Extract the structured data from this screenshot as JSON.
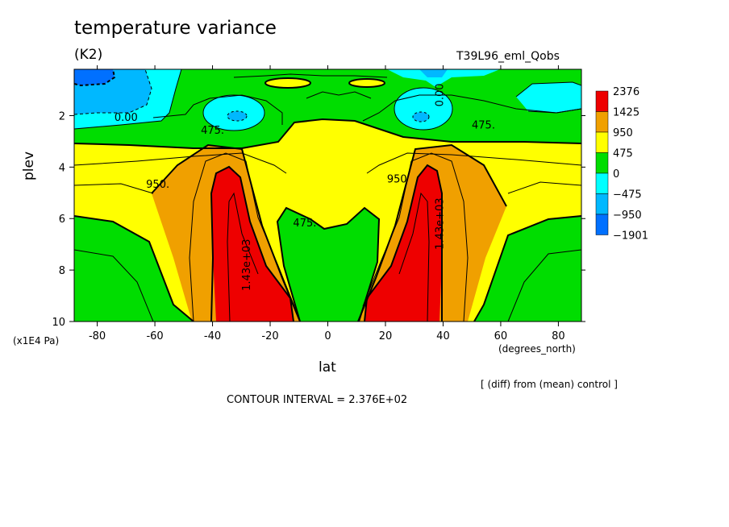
{
  "header": {
    "title": "temperature variance",
    "units": "(K2)",
    "run_name": "T39L96_eml_Qobs"
  },
  "footer": {
    "y_unit": "(x1E4 Pa)",
    "x_unit": "(degrees_north)",
    "diff_note": "[ (diff) from (mean) control ]",
    "contour_interval": "CONTOUR INTERVAL = 2.376E+02"
  },
  "chart_data": {
    "type": "heatmap",
    "title": "temperature variance",
    "subtitle": "(K2)",
    "xlabel": "lat",
    "ylabel": "plev",
    "xlim": [
      -88,
      88
    ],
    "ylim": [
      0.2,
      10
    ],
    "y_inverted": true,
    "x_ticks": [
      -80,
      -60,
      -40,
      -20,
      0,
      20,
      40,
      60,
      80
    ],
    "y_ticks": [
      2,
      4,
      6,
      8,
      10
    ],
    "legend_position": "right",
    "colorbar": {
      "labels": [
        "2376",
        "1425",
        "950",
        "475",
        "0",
        "−475",
        "−950",
        "−1901"
      ],
      "colors": [
        "#ee0000",
        "#f0a000",
        "#ffff00",
        "#00dd00",
        "#00ffff",
        "#00b8ff",
        "#0070ff"
      ]
    },
    "contour_labels": [
      {
        "text": "0.00",
        "lat": -70,
        "plev": 2.2
      },
      {
        "text": "475.",
        "lat": -40,
        "plev": 2.7
      },
      {
        "text": "950.",
        "lat": -59,
        "plev": 4.8
      },
      {
        "text": "1.43e+03",
        "lat": -27,
        "plev": 7.8
      },
      {
        "text": "475.",
        "lat": -8,
        "plev": 6.3
      },
      {
        "text": "0.00",
        "lat": 40,
        "plev": 1.2
      },
      {
        "text": "475.",
        "lat": 54,
        "plev": 2.5
      },
      {
        "text": "950",
        "lat": 24,
        "plev": 4.6
      },
      {
        "text": "1.43e+03",
        "lat": 40,
        "plev": 6.2
      }
    ]
  }
}
